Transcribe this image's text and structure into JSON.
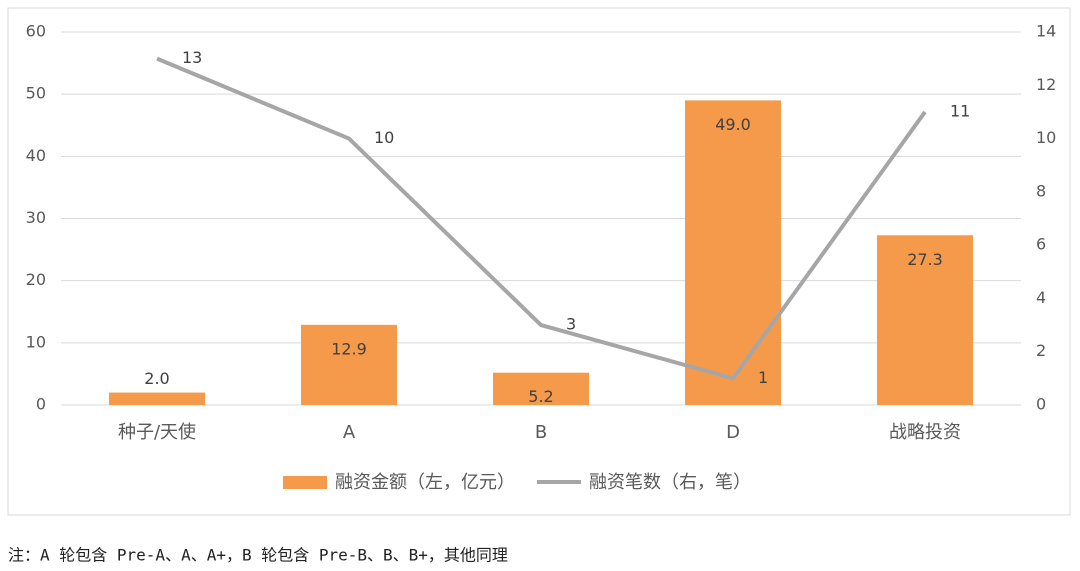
{
  "chart_data": {
    "type": "bar",
    "categories": [
      "种子/天使",
      "A",
      "B",
      "D",
      "战略投资"
    ],
    "series": [
      {
        "name": "融资金额（左，亿元）",
        "type": "bar",
        "color": "#f59a4a",
        "values": [
          2.0,
          12.9,
          5.2,
          49.0,
          27.3
        ],
        "value_labels": [
          "2.0",
          "12.9",
          "5.2",
          "49.0",
          "27.3"
        ]
      },
      {
        "name": "融资笔数（右，笔）",
        "type": "line",
        "color": "#a6a6a6",
        "axis": "y2",
        "values": [
          13,
          10,
          3,
          1,
          11
        ]
      }
    ],
    "ylim": [
      0,
      60
    ],
    "yticks": [
      0,
      10,
      20,
      30,
      40,
      50,
      60
    ],
    "y2lim": [
      0,
      14
    ],
    "y2ticks": [
      0,
      2,
      4,
      6,
      8,
      10,
      12,
      14
    ],
    "grid": true,
    "legend": "bottom",
    "note": "注：A 轮包含 Pre-A、A、A+，B 轮包含 Pre-B、B、B+，其他同理"
  }
}
